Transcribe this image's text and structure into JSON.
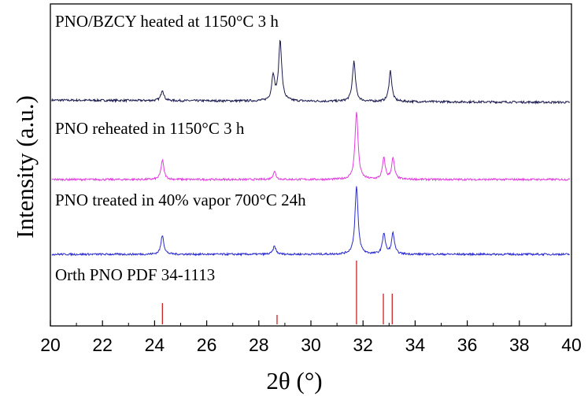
{
  "chart_data": {
    "type": "line",
    "xlabel": "2θ (°)",
    "ylabel": "Intensity (a.u.)",
    "xlim": [
      20,
      40
    ],
    "x_ticks": [
      "20",
      "22",
      "24",
      "26",
      "28",
      "30",
      "32",
      "34",
      "36",
      "38",
      "40"
    ],
    "y_ticks_shown": false,
    "grid": false,
    "series": [
      {
        "name": "PNO/BZCY heated at 1150°C 3 h",
        "color": "#1a1a4e",
        "baseline": 0.0,
        "peaks": [
          {
            "x": 24.3,
            "height": 0.06
          },
          {
            "x": 28.55,
            "height": 0.14
          },
          {
            "x": 28.82,
            "height": 0.33
          },
          {
            "x": 31.65,
            "height": 0.22
          },
          {
            "x": 33.05,
            "height": 0.17
          }
        ]
      },
      {
        "name": "PNO reheated in 1150°C 3 h",
        "color": "#e23ce0",
        "baseline": 0.0,
        "peaks": [
          {
            "x": 24.3,
            "height": 0.12
          },
          {
            "x": 28.6,
            "height": 0.05
          },
          {
            "x": 31.75,
            "height": 0.42
          },
          {
            "x": 32.8,
            "height": 0.13
          },
          {
            "x": 33.15,
            "height": 0.13
          }
        ]
      },
      {
        "name": "PNO treated in 40% vapor 700°C 24h",
        "color": "#2b2bcf",
        "baseline": 0.0,
        "peaks": [
          {
            "x": 24.3,
            "height": 0.12
          },
          {
            "x": 28.6,
            "height": 0.05
          },
          {
            "x": 31.75,
            "height": 0.42
          },
          {
            "x": 32.8,
            "height": 0.13
          },
          {
            "x": 33.15,
            "height": 0.13
          }
        ]
      },
      {
        "name": "Orth PNO PDF 34-1113",
        "type": "stick",
        "color": "#cc2222",
        "sticks": [
          {
            "x": 24.3,
            "height": 0.09
          },
          {
            "x": 28.7,
            "height": 0.04
          },
          {
            "x": 31.75,
            "height": 0.27
          },
          {
            "x": 32.78,
            "height": 0.13
          },
          {
            "x": 33.12,
            "height": 0.13
          }
        ]
      }
    ]
  }
}
